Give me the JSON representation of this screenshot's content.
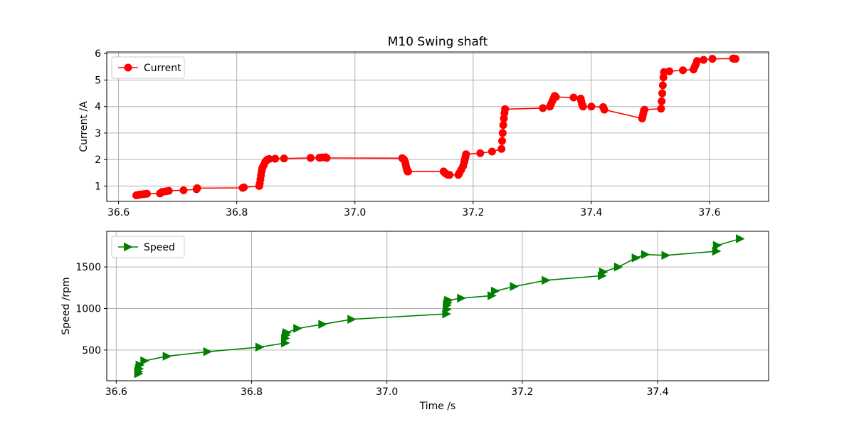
{
  "figure": {
    "title": "M10 Swing shaft"
  },
  "chart_data": [
    {
      "type": "line",
      "title": "M10 Swing shaft",
      "xlabel": "",
      "ylabel": "Current /A",
      "xlim": [
        36.58,
        37.7
      ],
      "ylim": [
        0.42,
        6.06
      ],
      "xticks": [
        36.6,
        36.8,
        37.0,
        37.2,
        37.4,
        37.6
      ],
      "xtick_labels": [
        "36.6",
        "36.8",
        "37.0",
        "37.2",
        "37.4",
        "37.6"
      ],
      "yticks": [
        1,
        2,
        3,
        4,
        5,
        6
      ],
      "ytick_labels": [
        "1",
        "2",
        "3",
        "4",
        "5",
        "6"
      ],
      "grid": true,
      "legend": "top-left",
      "series": [
        {
          "name": "Current",
          "color": "#ff0000",
          "marker": "circle",
          "x": [
            36.63,
            36.632,
            36.634,
            36.636,
            36.64,
            36.644,
            36.648,
            36.67,
            36.672,
            36.674,
            36.68,
            36.685,
            36.71,
            36.732,
            36.733,
            36.81,
            36.812,
            36.838,
            36.839,
            36.84,
            36.841,
            36.842,
            36.843,
            36.844,
            36.846,
            36.848,
            36.85,
            36.852,
            36.855,
            36.865,
            36.88,
            36.925,
            36.94,
            36.944,
            36.95,
            36.952,
            37.08,
            37.083,
            37.085,
            37.086,
            37.087,
            37.088,
            37.089,
            37.09,
            37.15,
            37.152,
            37.155,
            37.158,
            37.16,
            37.175,
            37.177,
            37.18,
            37.183,
            37.185,
            37.186,
            37.187,
            37.188,
            37.212,
            37.232,
            37.248,
            37.249,
            37.25,
            37.251,
            37.252,
            37.253,
            37.254,
            37.318,
            37.33,
            37.332,
            37.334,
            37.336,
            37.338,
            37.34,
            37.37,
            37.382,
            37.383,
            37.384,
            37.385,
            37.386,
            37.4,
            37.42,
            37.422,
            37.486,
            37.487,
            37.488,
            37.489,
            37.49,
            37.518,
            37.519,
            37.52,
            37.521,
            37.522,
            37.523,
            37.532,
            37.555,
            37.573,
            37.575,
            37.577,
            37.579,
            37.59,
            37.605,
            37.64,
            37.642,
            37.644
          ],
          "y": [
            0.65,
            0.66,
            0.67,
            0.68,
            0.69,
            0.7,
            0.71,
            0.72,
            0.75,
            0.78,
            0.8,
            0.82,
            0.84,
            0.88,
            0.92,
            0.93,
            0.95,
            1.0,
            1.1,
            1.25,
            1.4,
            1.55,
            1.65,
            1.72,
            1.8,
            1.9,
            1.96,
            2.0,
            2.02,
            2.03,
            2.04,
            2.06,
            2.07,
            2.08,
            2.09,
            2.06,
            2.05,
            2.0,
            1.9,
            1.8,
            1.7,
            1.62,
            1.55,
            1.55,
            1.55,
            1.5,
            1.45,
            1.42,
            1.42,
            1.42,
            1.5,
            1.62,
            1.75,
            1.9,
            2.0,
            2.1,
            2.2,
            2.24,
            2.3,
            2.4,
            2.7,
            3.0,
            3.3,
            3.55,
            3.75,
            3.9,
            3.94,
            4.0,
            4.1,
            4.2,
            4.3,
            4.4,
            4.36,
            4.34,
            4.3,
            4.2,
            4.1,
            4.05,
            4.0,
            4.0,
            3.98,
            3.88,
            3.55,
            3.65,
            3.75,
            3.85,
            3.88,
            3.92,
            4.2,
            4.5,
            4.8,
            5.1,
            5.3,
            5.33,
            5.37,
            5.4,
            5.5,
            5.6,
            5.72,
            5.76,
            5.8,
            5.81,
            5.8,
            5.8
          ]
        }
      ]
    },
    {
      "type": "line",
      "title": "",
      "xlabel": "Time /s",
      "ylabel": "Speed /rpm",
      "xlim": [
        36.586,
        37.564
      ],
      "ylim": [
        130,
        1930
      ],
      "xticks": [
        36.6,
        36.8,
        37.0,
        37.2,
        37.4
      ],
      "xtick_labels": [
        "36.6",
        "36.8",
        "37.0",
        "37.2",
        "37.4"
      ],
      "yticks": [
        500,
        1000,
        1500
      ],
      "ytick_labels": [
        "500",
        "1000",
        "1500"
      ],
      "grid": true,
      "legend": "top-left",
      "series": [
        {
          "name": "Speed",
          "color": "#008000",
          "marker": "triangle-right",
          "x": [
            36.633,
            36.633,
            36.634,
            36.635,
            36.642,
            36.675,
            36.735,
            36.812,
            36.85,
            36.85,
            36.851,
            36.852,
            36.868,
            36.905,
            36.948,
            37.088,
            37.089,
            37.089,
            37.09,
            37.091,
            37.11,
            37.155,
            37.16,
            37.188,
            37.235,
            37.318,
            37.32,
            37.342,
            37.368,
            37.382,
            37.412,
            37.487,
            37.488,
            37.522
          ],
          "y": [
            215,
            240,
            275,
            320,
            370,
            425,
            480,
            535,
            585,
            640,
            680,
            710,
            760,
            810,
            870,
            935,
            990,
            1040,
            1070,
            1100,
            1125,
            1155,
            1210,
            1265,
            1340,
            1395,
            1440,
            1500,
            1610,
            1650,
            1640,
            1690,
            1760,
            1840
          ]
        }
      ]
    }
  ]
}
